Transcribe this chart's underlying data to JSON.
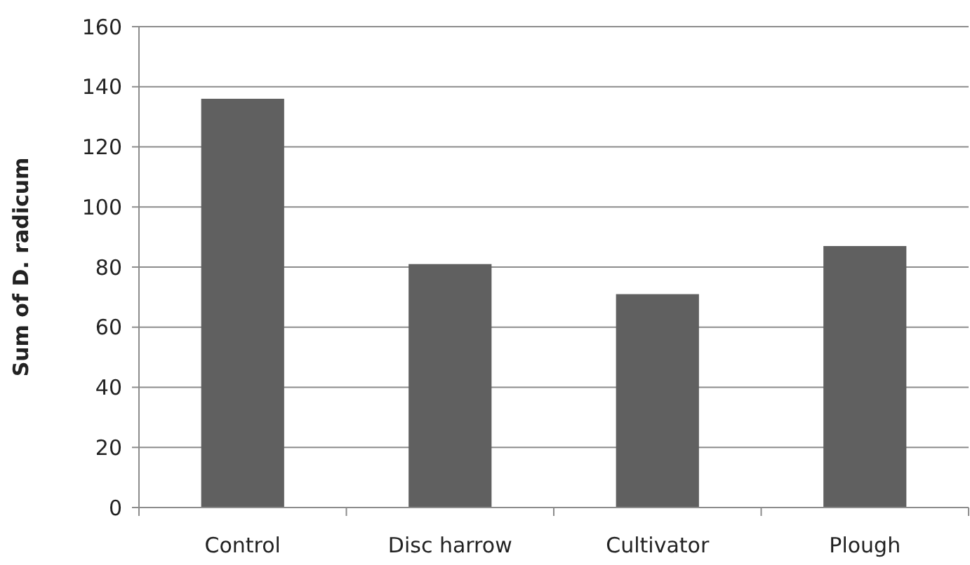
{
  "chart_data": {
    "type": "bar",
    "ylabel": "Sum of D. radicum",
    "categories": [
      "Control",
      "Disc harrow",
      "Cultivator",
      "Plough"
    ],
    "values": [
      136,
      81,
      71,
      87
    ],
    "color": "#606060",
    "ylim": [
      0,
      160
    ],
    "yticks": [
      0,
      20,
      40,
      60,
      80,
      100,
      120,
      140,
      160
    ],
    "grid": "y"
  }
}
